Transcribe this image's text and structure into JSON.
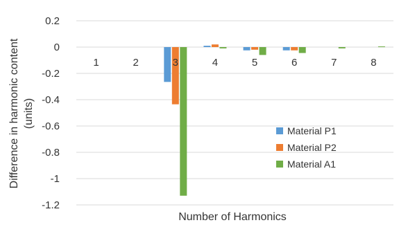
{
  "chart_data": {
    "type": "bar",
    "title": "",
    "xlabel": "Number of Harmonics",
    "ylabel_line1": "Difference in harmonic content",
    "ylabel_line2": "(units)",
    "categories": [
      "1",
      "2",
      "3",
      "4",
      "5",
      "6",
      "7",
      "8"
    ],
    "ylim": [
      -1.2,
      0.2
    ],
    "yticks": [
      0.2,
      0,
      -0.2,
      -0.4,
      -0.6,
      -0.8,
      -1,
      -1.2
    ],
    "ytick_labels": [
      "0.2",
      "0",
      "-0.2",
      "-0.4",
      "-0.6",
      "-0.8",
      "-1",
      "-1.2"
    ],
    "grid": true,
    "legend_position": "bottom-right",
    "series": [
      {
        "name": "Material P1",
        "color": "#5B9BD5",
        "values": [
          0,
          0,
          -0.265,
          0.01,
          -0.025,
          -0.025,
          0,
          0
        ]
      },
      {
        "name": "Material P2",
        "color": "#ED7D31",
        "values": [
          0,
          0,
          -0.435,
          0.02,
          -0.02,
          -0.025,
          0,
          0
        ]
      },
      {
        "name": "Material A1",
        "color": "#70AD47",
        "values": [
          0,
          0,
          -1.13,
          -0.01,
          -0.06,
          -0.045,
          -0.01,
          0.005
        ]
      }
    ]
  }
}
